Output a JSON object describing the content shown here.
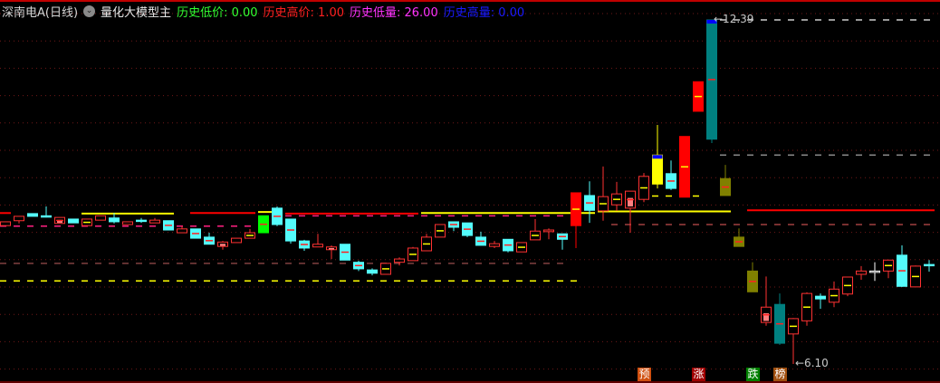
{
  "header": {
    "stock": "深南电A(日线)",
    "indicator_icon": "chevron-down-circle-icon",
    "indicator": "量化大模型主",
    "stats": [
      {
        "label": "历史低价:",
        "value": "0.00",
        "color": "#33ff33"
      },
      {
        "label": "历史高价:",
        "value": "1.00",
        "color": "#ff2020"
      },
      {
        "label": "历史低量:",
        "value": "26.00",
        "color": "#ff33ff"
      },
      {
        "label": "历史高量:",
        "value": "0.00",
        "color": "#1a1aff"
      }
    ]
  },
  "chart_data": {
    "type": "candlestick",
    "ylim": [
      6.1,
      12.39
    ],
    "grid": "dotted horizontal",
    "colors": {
      "up": "#ff3232",
      "down": "#54fcfc",
      "green": "#00ff00",
      "redfill": "#ff0000",
      "yellow": "#ffff00",
      "teal": "#008080",
      "olive": "#808000",
      "white": "#ffffff"
    },
    "candles": [
      [
        8.63,
        8.7,
        8.63,
        8.7
      ],
      [
        8.72,
        8.8,
        8.67,
        8.8
      ],
      [
        8.85,
        8.85,
        8.8,
        8.8
      ],
      [
        8.81,
        8.98,
        8.78,
        8.8
      ],
      [
        8.67,
        8.78,
        8.67,
        8.78,
        "pink"
      ],
      [
        8.75,
        8.75,
        8.68,
        8.68
      ],
      [
        8.63,
        8.75,
        8.63,
        8.75
      ],
      [
        8.73,
        8.81,
        8.73,
        8.81
      ],
      [
        8.77,
        8.86,
        8.67,
        8.7
      ],
      [
        8.65,
        8.7,
        8.65,
        8.7
      ],
      [
        8.73,
        8.77,
        8.68,
        8.72
      ],
      [
        8.68,
        8.77,
        8.68,
        8.73
      ],
      [
        8.72,
        8.72,
        8.55,
        8.55
      ],
      [
        8.5,
        8.62,
        8.5,
        8.57
      ],
      [
        8.57,
        8.57,
        8.4,
        8.4
      ],
      [
        8.42,
        8.5,
        8.29,
        8.29
      ],
      [
        8.25,
        8.35,
        8.19,
        8.33,
        "pink"
      ],
      [
        8.32,
        8.4,
        8.32,
        8.4
      ],
      [
        8.4,
        8.57,
        8.4,
        8.5
      ],
      [
        8.5,
        8.81,
        8.5,
        8.81,
        "green"
      ],
      [
        8.95,
        8.98,
        8.62,
        8.65
      ],
      [
        8.75,
        8.75,
        8.3,
        8.35
      ],
      [
        8.35,
        8.37,
        8.17,
        8.22
      ],
      [
        8.24,
        8.48,
        8.24,
        8.29
      ],
      [
        8.19,
        8.27,
        8.02,
        8.24,
        "pink"
      ],
      [
        8.29,
        8.29,
        8.0,
        8.0
      ],
      [
        7.96,
        7.99,
        7.8,
        7.84
      ],
      [
        7.82,
        7.85,
        7.72,
        7.76
      ],
      [
        7.74,
        7.94,
        7.74,
        7.94
      ],
      [
        7.96,
        8.05,
        7.9,
        8.02
      ],
      [
        7.99,
        8.24,
        7.99,
        8.22
      ],
      [
        8.17,
        8.48,
        8.17,
        8.42
      ],
      [
        8.42,
        8.65,
        8.42,
        8.65
      ],
      [
        8.7,
        8.7,
        8.53,
        8.6
      ],
      [
        8.68,
        8.68,
        8.42,
        8.45
      ],
      [
        8.42,
        8.52,
        8.27,
        8.27
      ],
      [
        8.25,
        8.35,
        8.22,
        8.3
      ],
      [
        8.38,
        8.38,
        8.14,
        8.17
      ],
      [
        8.15,
        8.32,
        8.15,
        8.32
      ],
      [
        8.37,
        8.75,
        8.37,
        8.53
      ],
      [
        8.52,
        8.58,
        8.38,
        8.55
      ],
      [
        8.48,
        8.48,
        8.19,
        8.38
      ],
      [
        8.63,
        9.23,
        8.22,
        9.23,
        "redfill"
      ],
      [
        9.18,
        9.44,
        8.68,
        8.91
      ],
      [
        8.9,
        9.71,
        8.72,
        9.16
      ],
      [
        9.01,
        9.43,
        8.9,
        9.21
      ],
      [
        8.95,
        9.26,
        8.5,
        9.26,
        "pink"
      ],
      [
        9.11,
        9.59,
        9.06,
        9.53
      ],
      [
        9.39,
        10.47,
        9.31,
        9.92,
        "yellow"
      ],
      [
        9.58,
        9.82,
        9.28,
        9.31
      ],
      [
        9.15,
        10.26,
        9.15,
        10.26,
        "redfill"
      ],
      [
        10.72,
        11.26,
        10.72,
        11.26,
        "redfill"
      ],
      [
        12.39,
        12.39,
        10.14,
        10.21,
        "teal"
      ],
      [
        9.49,
        9.74,
        9.18,
        9.18,
        "olive"
      ],
      [
        8.42,
        8.58,
        8.25,
        8.25,
        "olive"
      ],
      [
        7.8,
        7.96,
        7.42,
        7.42,
        "olive"
      ],
      [
        6.86,
        7.7,
        6.8,
        7.14,
        "pink"
      ],
      [
        7.19,
        7.39,
        6.45,
        6.48,
        "teal"
      ],
      [
        6.65,
        6.94,
        6.1,
        6.93
      ],
      [
        6.89,
        7.41,
        6.8,
        7.39
      ],
      [
        7.34,
        7.39,
        7.11,
        7.29
      ],
      [
        7.23,
        7.61,
        7.14,
        7.47
      ],
      [
        7.38,
        7.69,
        7.34,
        7.69
      ],
      [
        7.74,
        7.89,
        7.64,
        7.8
      ],
      [
        7.8,
        7.96,
        7.62,
        7.79,
        "white"
      ],
      [
        7.8,
        8.0,
        7.67,
        8.0
      ],
      [
        8.09,
        8.27,
        7.51,
        7.52
      ],
      [
        7.51,
        7.9,
        7.51,
        7.89
      ],
      [
        7.92,
        8.0,
        7.79,
        7.9
      ]
    ],
    "level_lines": [
      {
        "price": 8.85,
        "from": 6,
        "to": 12,
        "color": "#ffff00",
        "style": "solid"
      },
      {
        "price": 8.88,
        "from": 19,
        "to": 20,
        "color": "#ffff00",
        "style": "solid"
      },
      {
        "price": 8.86,
        "from": 31,
        "to": 43,
        "color": "#ffff00",
        "style": "solid"
      },
      {
        "price": 8.89,
        "from": 44,
        "to": 53,
        "color": "#ffff00",
        "style": "solid"
      },
      {
        "price": 8.86,
        "from": 0,
        "to": 0,
        "color": "#ff0000",
        "style": "solid"
      },
      {
        "price": 8.86,
        "from": 14,
        "to": 18,
        "color": "#ff0000",
        "style": "solid"
      },
      {
        "price": 8.85,
        "from": 21,
        "to": 30,
        "color": "#ff0000",
        "style": "solid"
      },
      {
        "price": 8.91,
        "from": 55,
        "to": 68,
        "color": "#ff0000",
        "style": "solid"
      },
      {
        "price": 8.62,
        "from": 0,
        "to": 19,
        "color": "#ff2080",
        "style": "dash"
      },
      {
        "price": 8.81,
        "from": 21,
        "to": 41,
        "color": "#ff2080",
        "style": "dash"
      },
      {
        "price": 7.94,
        "from": 0,
        "to": 41,
        "color": "#804040",
        "style": "dash"
      },
      {
        "price": 8.65,
        "from": 45,
        "to": 68,
        "color": "#a04040",
        "style": "dash"
      },
      {
        "price": 7.62,
        "from": 0,
        "to": 42,
        "color": "#ffff00",
        "style": "dash"
      },
      {
        "price": 9.17,
        "from": 48,
        "to": 51,
        "color": "#ffff00",
        "style": "dash"
      },
      {
        "price": 9.92,
        "from": 53,
        "to": 68,
        "color": "#888888",
        "style": "dash"
      },
      {
        "price": 12.39,
        "from": 53,
        "to": 68,
        "color": "#cccccc",
        "style": "dash"
      }
    ],
    "annotations": [
      {
        "text": "12.39",
        "index": 52
      },
      {
        "text": "6.10",
        "index": 58
      }
    ],
    "signals": [
      {
        "text": "预",
        "index": 47,
        "color": "#d05010"
      },
      {
        "text": "涨",
        "index": 51,
        "color": "#a00000"
      },
      {
        "text": "跌",
        "index": 55,
        "color": "#008000"
      },
      {
        "text": "榜",
        "index": 57,
        "color": "#a05010"
      }
    ]
  }
}
